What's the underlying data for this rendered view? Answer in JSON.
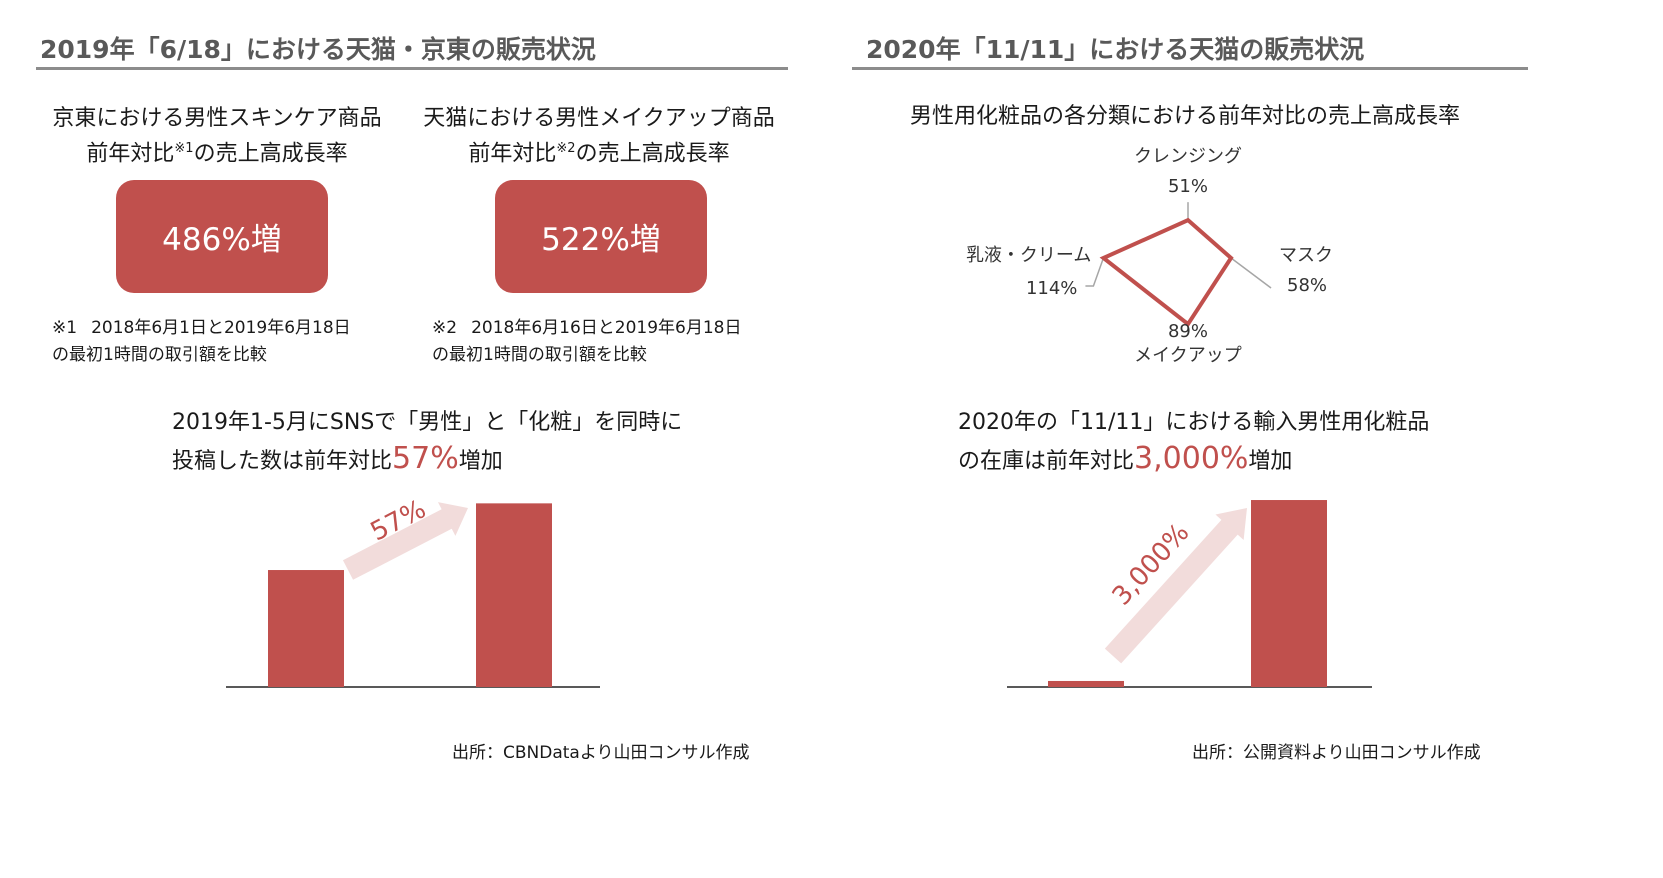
{
  "left": {
    "title": "2019年「6/18」における天猫・京東の販売状況",
    "card1": {
      "line1": "京東における男性スキンケア商品",
      "line2a": "前年対比",
      "sup": "※1",
      "line2b": "の売上高成長率",
      "value": "486%増"
    },
    "card2": {
      "line1": "天猫における男性メイクアップ商品",
      "line2a": "前年対比",
      "sup": "※2",
      "line2b": "の売上高成長率",
      "value": "522%増"
    },
    "note1": {
      "mark": "※1",
      "line1": "2018年6月1日と2019年6月18日",
      "line2": "の最初1時間の取引額を比較"
    },
    "note2": {
      "mark": "※2",
      "line1": "2018年6月16日と2019年6月18日",
      "line2": "の最初1時間の取引額を比較"
    },
    "lead_line1": "2019年1-5月にSNSで「男性」と「化粧」を同時に",
    "lead_line2a": "投稿した数は前年対比",
    "lead_highlight": "57%",
    "lead_line2b": "増加",
    "source": "出所：CBNDataより山田コンサル作成"
  },
  "right": {
    "title": "2020年「11/11」における天猫の販売状況",
    "radar_title": "男性用化粧品の各分類における前年対比の売上高成長率",
    "lead_line1": "2020年の「11/11」における輸入男性用化粧品",
    "lead_line2a": "の在庫は前年対比",
    "lead_highlight": "3,000%",
    "lead_line2b": "増加",
    "source": "出所：公開資料より山田コンサル作成"
  },
  "chart_data": [
    {
      "type": "radar",
      "title": "男性用化粧品の各分類における前年対比の売上高成長率",
      "categories": [
        "クレンジング",
        "マスク",
        "メイクアップ",
        "乳液・クリーム"
      ],
      "values": [
        51,
        58,
        89,
        114
      ],
      "value_labels": [
        "51%",
        "58%",
        "89%",
        "114%"
      ],
      "max": 124,
      "color": "#c0504d"
    },
    {
      "type": "bar",
      "categories": [
        "",
        ""
      ],
      "values": [
        100,
        157
      ],
      "arrow_label": "57%",
      "color": "#c0504d",
      "arrow_color": "#f2dcdb",
      "ylim": [
        0,
        165
      ]
    },
    {
      "type": "bar",
      "categories": [
        "",
        ""
      ],
      "values": [
        1,
        31
      ],
      "arrow_label": "3,000%",
      "color": "#c0504d",
      "arrow_color": "#f2dcdb",
      "ylim": [
        0,
        32
      ]
    }
  ]
}
